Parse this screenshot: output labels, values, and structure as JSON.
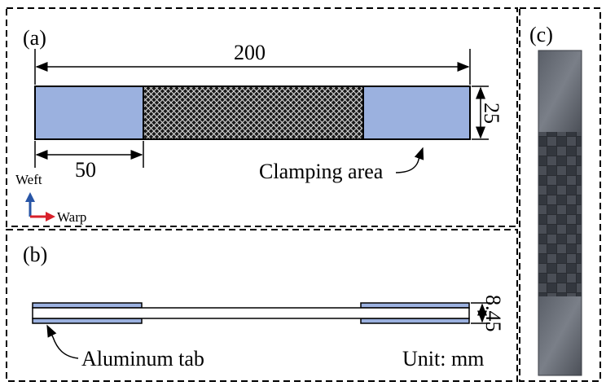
{
  "panel_a": {
    "label": "(a)",
    "total_length": "200",
    "tab_length": "50",
    "width": "25",
    "clamping_label": "Clamping area",
    "axis_weft": "Weft",
    "axis_warp": "Warp"
  },
  "panel_b": {
    "label": "(b)",
    "thickness": "8.45",
    "tab_label": "Aluminum tab",
    "unit": "Unit: mm"
  },
  "panel_c": {
    "label": "(c)"
  },
  "colors": {
    "tab_fill": "#9bb1df",
    "weft_arrow": "#2855a6",
    "warp_arrow": "#d8202a"
  }
}
